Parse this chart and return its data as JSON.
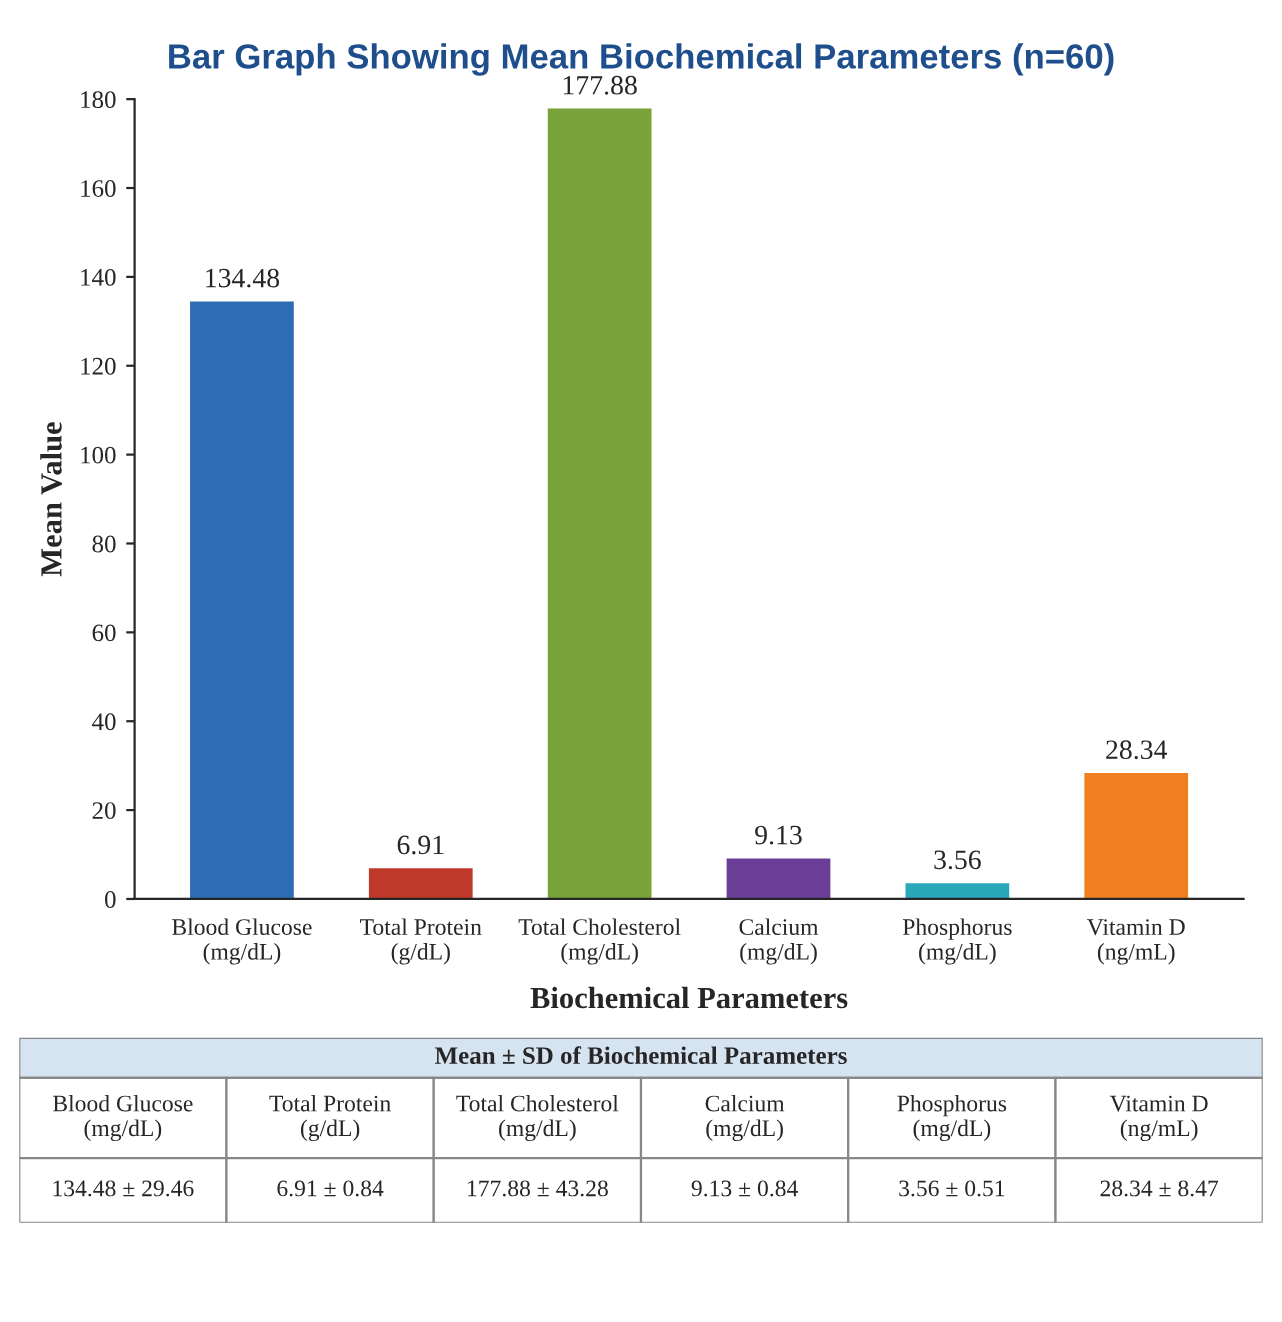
{
  "chart_data": {
    "type": "bar",
    "title": "Bar Graph Showing Mean Biochemical Parameters (n=60)",
    "xlabel": "Biochemical Parameters",
    "ylabel": "Mean Value",
    "categories": [
      "Blood Glucose\n(mg/dL)",
      "Total Protein\n(g/dL)",
      "Total Cholesterol\n(mg/dL)",
      "Calcium\n(mg/dL)",
      "Phosphorus\n(mg/dL)",
      "Vitamin D\n(ng/mL)"
    ],
    "values": [
      134.48,
      6.91,
      177.88,
      9.13,
      3.56,
      28.34
    ],
    "colors": [
      "#2e6cb5",
      "#c0392b",
      "#78a33b",
      "#6a3d97",
      "#2ba7ba",
      "#f08020"
    ],
    "ylim": [
      0,
      180
    ],
    "yticks": [
      0,
      20,
      40,
      60,
      80,
      100,
      120,
      140,
      160,
      180
    ],
    "data_labels": true,
    "grid": false,
    "legend": false,
    "annotations": [
      "Mean ± SD of Biochemical Parameters",
      "134.48 ± 29.46",
      "6.91 ± 0.84",
      "177.88 ± 43.28",
      "9.13 ± 0.84",
      "3.56 ± 0.51",
      "28.34 ± 8.47"
    ]
  }
}
